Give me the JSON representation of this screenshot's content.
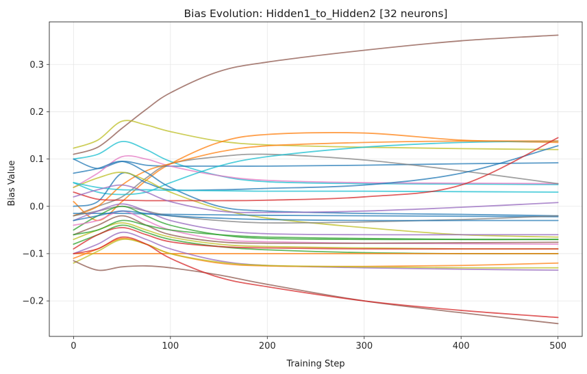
{
  "chart_data": {
    "type": "line",
    "title": "Bias Evolution: Hidden1_to_Hidden2 [32 neurons]",
    "xlabel": "Training Step",
    "ylabel": "Bias Value",
    "xlim": [
      -25,
      525
    ],
    "ylim": [
      -0.275,
      0.39
    ],
    "xticks": [
      0,
      100,
      200,
      300,
      400,
      500
    ],
    "yticks": [
      -0.2,
      -0.1,
      0.0,
      0.1,
      0.2,
      0.3
    ],
    "ytick_labels": [
      "−0.2",
      "−0.1",
      "0.0",
      "0.1",
      "0.2",
      "0.3"
    ],
    "grid": true,
    "legend": "none",
    "x": [
      0,
      25,
      50,
      75,
      100,
      150,
      200,
      300,
      400,
      500
    ],
    "series": [
      {
        "color": "#8c564b",
        "values": [
          0.11,
          0.125,
          0.165,
          0.205,
          0.24,
          0.285,
          0.305,
          0.33,
          0.35,
          0.362
        ]
      },
      {
        "color": "#bcbd22",
        "values": [
          0.123,
          0.14,
          0.18,
          0.172,
          0.158,
          0.138,
          0.13,
          0.125,
          0.122,
          0.12
        ]
      },
      {
        "color": "#ff7f0e",
        "values": [
          0.01,
          -0.03,
          0.01,
          0.055,
          0.09,
          0.135,
          0.152,
          0.155,
          0.14,
          0.135
        ]
      },
      {
        "color": "#17becf",
        "values": [
          0.1,
          0.11,
          0.137,
          0.12,
          0.095,
          0.065,
          0.052,
          0.048,
          0.047,
          0.046
        ]
      },
      {
        "color": "#1f77b4",
        "values": [
          0.1,
          0.08,
          0.095,
          0.087,
          0.085,
          0.085,
          0.085,
          0.087,
          0.09,
          0.092
        ]
      },
      {
        "color": "#e377c2",
        "values": [
          0.04,
          0.07,
          0.105,
          0.1,
          0.085,
          0.065,
          0.055,
          0.05,
          0.049,
          0.048
        ]
      },
      {
        "color": "#7f7f7f",
        "values": [
          -0.02,
          0.0,
          0.02,
          0.06,
          0.09,
          0.105,
          0.11,
          0.098,
          0.075,
          0.048
        ]
      },
      {
        "color": "#17becf",
        "values": [
          0.05,
          0.03,
          0.025,
          0.03,
          0.05,
          0.085,
          0.105,
          0.125,
          0.135,
          0.138
        ]
      },
      {
        "color": "#ff7f0e",
        "values": [
          -0.02,
          0.0,
          0.045,
          0.075,
          0.09,
          0.115,
          0.128,
          0.135,
          0.138,
          0.138
        ]
      },
      {
        "color": "#1f77b4",
        "values": [
          0.07,
          0.08,
          0.095,
          0.072,
          0.04,
          0.0,
          -0.01,
          -0.015,
          -0.017,
          -0.02
        ]
      },
      {
        "color": "#1f77b4",
        "values": [
          0.0,
          0.01,
          0.07,
          0.05,
          0.035,
          0.035,
          0.038,
          0.045,
          0.07,
          0.128
        ]
      },
      {
        "color": "#bcbd22",
        "values": [
          0.04,
          0.06,
          0.072,
          0.055,
          0.03,
          -0.005,
          -0.025,
          -0.045,
          -0.06,
          -0.065
        ]
      },
      {
        "color": "#17becf",
        "values": [
          0.05,
          0.04,
          0.035,
          0.035,
          0.034,
          0.033,
          0.032,
          0.032,
          0.031,
          0.03
        ]
      },
      {
        "color": "#d62728",
        "values": [
          0.03,
          0.015,
          0.013,
          0.012,
          0.012,
          0.012,
          0.013,
          0.02,
          0.045,
          0.145
        ]
      },
      {
        "color": "#9467bd",
        "values": [
          0.02,
          0.035,
          0.045,
          0.03,
          0.01,
          -0.01,
          -0.013,
          -0.01,
          -0.002,
          0.008
        ]
      },
      {
        "color": "#1f77b4",
        "values": [
          -0.015,
          -0.015,
          -0.015,
          -0.016,
          -0.017,
          -0.018,
          -0.019,
          -0.02,
          -0.021,
          -0.022
        ]
      },
      {
        "color": "#7f7f7f",
        "values": [
          -0.02,
          -0.01,
          0.0,
          -0.01,
          -0.02,
          -0.03,
          -0.035,
          -0.033,
          -0.028,
          -0.02
        ]
      },
      {
        "color": "#9467bd",
        "values": [
          -0.03,
          -0.01,
          0.005,
          -0.01,
          -0.03,
          -0.05,
          -0.058,
          -0.06,
          -0.06,
          -0.06
        ]
      },
      {
        "color": "#2ca02c",
        "values": [
          -0.05,
          -0.02,
          0.0,
          -0.02,
          -0.04,
          -0.06,
          -0.068,
          -0.07,
          -0.07,
          -0.07
        ]
      },
      {
        "color": "#e377c2",
        "values": [
          -0.04,
          -0.03,
          -0.01,
          -0.03,
          -0.05,
          -0.07,
          -0.075,
          -0.078,
          -0.079,
          -0.08
        ]
      },
      {
        "color": "#8c564b",
        "values": [
          -0.06,
          -0.04,
          -0.02,
          -0.04,
          -0.06,
          -0.075,
          -0.078,
          -0.078,
          -0.077,
          -0.076
        ]
      },
      {
        "color": "#bcbd22",
        "values": [
          -0.07,
          -0.05,
          -0.035,
          -0.05,
          -0.065,
          -0.08,
          -0.085,
          -0.088,
          -0.09,
          -0.09
        ]
      },
      {
        "color": "#2ca02c",
        "values": [
          -0.08,
          -0.06,
          -0.04,
          -0.055,
          -0.07,
          -0.085,
          -0.092,
          -0.098,
          -0.1,
          -0.1
        ]
      },
      {
        "color": "#d62728",
        "values": [
          -0.09,
          -0.06,
          -0.045,
          -0.06,
          -0.075,
          -0.085,
          -0.088,
          -0.09,
          -0.09,
          -0.09
        ]
      },
      {
        "color": "#ff7f0e",
        "values": [
          -0.1,
          -0.1,
          -0.1,
          -0.1,
          -0.1,
          -0.1,
          -0.1,
          -0.1,
          -0.1,
          -0.1
        ]
      },
      {
        "color": "#9467bd",
        "values": [
          -0.1,
          -0.08,
          -0.055,
          -0.07,
          -0.09,
          -0.115,
          -0.125,
          -0.13,
          -0.133,
          -0.135
        ]
      },
      {
        "color": "#ff7f0e",
        "values": [
          -0.11,
          -0.09,
          -0.068,
          -0.08,
          -0.1,
          -0.12,
          -0.126,
          -0.127,
          -0.125,
          -0.12
        ]
      },
      {
        "color": "#bcbd22",
        "values": [
          -0.12,
          -0.095,
          -0.07,
          -0.08,
          -0.1,
          -0.118,
          -0.125,
          -0.128,
          -0.13,
          -0.13
        ]
      },
      {
        "color": "#8c564b",
        "values": [
          -0.115,
          -0.135,
          -0.128,
          -0.126,
          -0.13,
          -0.145,
          -0.165,
          -0.2,
          -0.225,
          -0.248
        ]
      },
      {
        "color": "#d62728",
        "values": [
          -0.1,
          -0.09,
          -0.065,
          -0.08,
          -0.11,
          -0.15,
          -0.17,
          -0.2,
          -0.22,
          -0.235
        ]
      },
      {
        "color": "#2ca02c",
        "values": [
          -0.06,
          -0.05,
          -0.03,
          -0.04,
          -0.05,
          -0.06,
          -0.065,
          -0.068,
          -0.07,
          -0.07
        ]
      },
      {
        "color": "#1f77b4",
        "values": [
          -0.03,
          -0.02,
          -0.01,
          -0.015,
          -0.02,
          -0.025,
          -0.028,
          -0.03,
          -0.03,
          -0.03
        ]
      }
    ]
  }
}
